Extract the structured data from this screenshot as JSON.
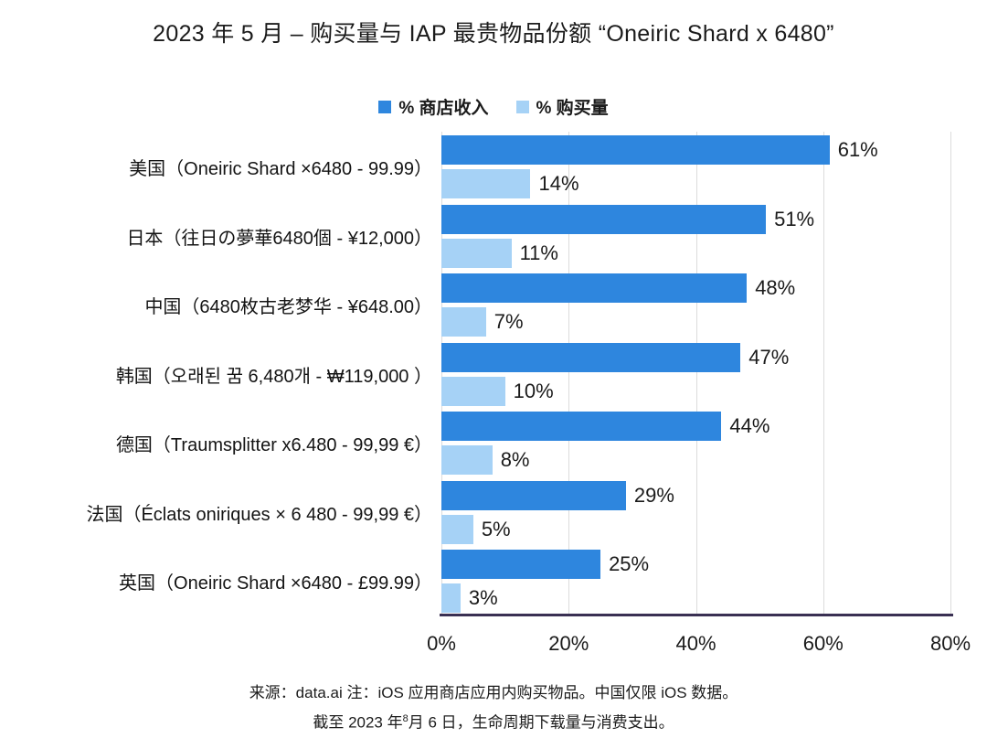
{
  "title": "2023 年 5 月 – 购买量与 IAP 最贵物品份额 “Oneiric Shard x 6480”",
  "legend": {
    "revenue_label": "% 商店收入",
    "purchases_label": "% 购买量"
  },
  "colors": {
    "revenue_bar": "#2E86DE",
    "purchases_bar": "#A6D2F6",
    "axis_line": "#3A3053",
    "gridline": "#DCDCDC",
    "text": "#1B1B1B"
  },
  "footer": {
    "line1": "来源：data.ai 注：iOS 应用商店应用内购买物品。中国仅限 iOS 数据。",
    "line2_before": "截至 2023 年",
    "line2_sup": "8",
    "line2_after": "月 6 日，生命周期下载量与消费支出。"
  },
  "chart_data": {
    "type": "bar",
    "orientation": "horizontal",
    "title": "2023 年 5 月 – 购买量与 IAP 最贵物品份额 “Oneiric Shard x 6480”",
    "categories": [
      "美国（Oneiric Shard ×6480 - 99.99）",
      "日本（往日の夢華6480個 - ¥12,000）",
      "中国（6480枚古老梦华 - ¥648.00）",
      "韩国（오래된 꿈 6,480개 - ₩119,000 ）",
      "德国（Traumsplitter x6.480 - 99,99 €）",
      "法国（Éclats oniriques × 6 480 - 99,99 €）",
      "英国（Oneiric Shard ×6480 - £99.99）"
    ],
    "series": [
      {
        "name": "% 商店收入",
        "color": "#2E86DE",
        "values": [
          61,
          51,
          48,
          47,
          44,
          29,
          25
        ]
      },
      {
        "name": "% 购买量",
        "color": "#A6D2F6",
        "values": [
          14,
          11,
          7,
          10,
          8,
          5,
          3
        ]
      }
    ],
    "value_label_suffix": "%",
    "xlim": [
      0,
      80
    ],
    "x_ticks": [
      "0%",
      "20%",
      "40%",
      "60%",
      "80%"
    ],
    "grid": true,
    "legend_position": "top",
    "value_labels": true
  }
}
